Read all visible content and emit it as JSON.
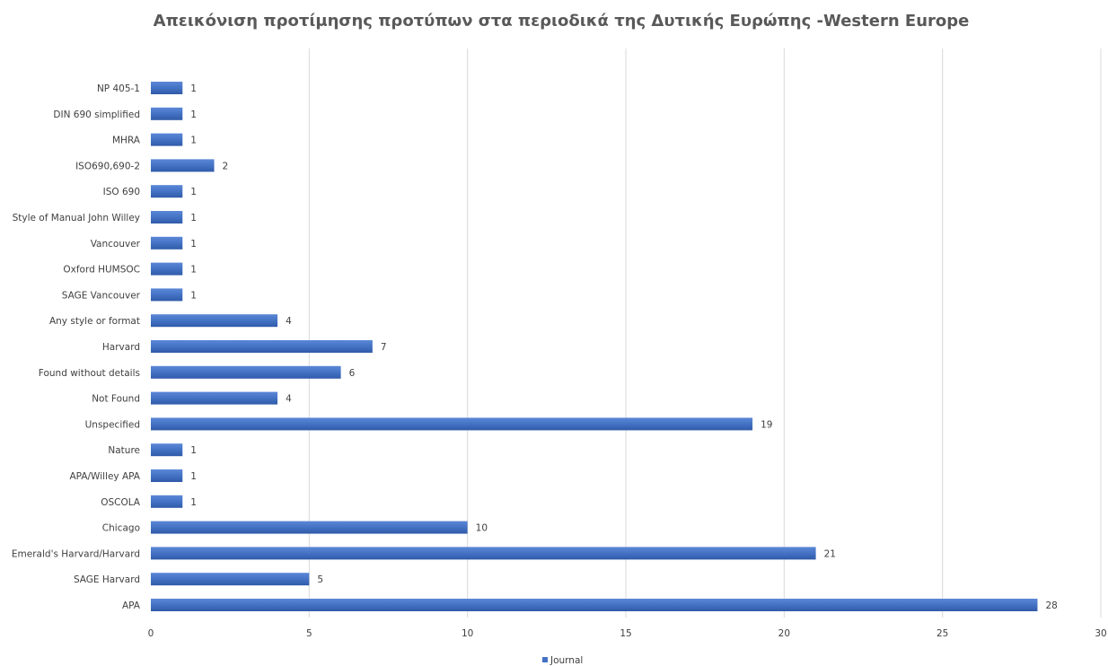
{
  "chart_data": {
    "type": "bar",
    "orientation": "horizontal",
    "title": "Απεικόνιση προτίμησης προτύπων στα περιοδικά της Δυτικής Ευρώπης -Western Europe",
    "categories": [
      "NP 405-1",
      "DIN 690 simplified",
      "MHRA",
      "ISO690,690-2",
      "ISO 690",
      "Style of Manual John Willey",
      "Vancouver",
      "Oxford HUMSOC",
      "SAGE Vancouver",
      "Any style or format",
      "Harvard",
      "Found without details",
      "Not Found",
      "Unspecified",
      "Nature",
      "APA/Willey APA",
      "OSCOLA",
      "Chicago",
      "Emerald's Harvard/Harvard",
      "SAGE Harvard",
      "APA"
    ],
    "series": [
      {
        "name": "Journal",
        "color": "#4472C4",
        "values": [
          1,
          1,
          1,
          2,
          1,
          1,
          1,
          1,
          1,
          4,
          7,
          6,
          4,
          19,
          1,
          1,
          1,
          10,
          21,
          5,
          28
        ]
      }
    ],
    "xlim": [
      0,
      30
    ],
    "xticks": [
      0,
      5,
      10,
      15,
      20,
      25,
      30
    ],
    "grid": true,
    "data_labels": true,
    "legend_position": "bottom"
  }
}
